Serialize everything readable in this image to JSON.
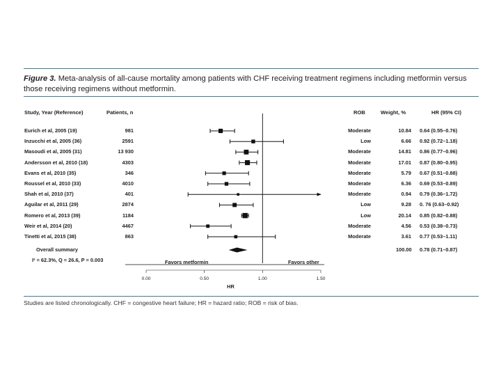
{
  "caption": {
    "label": "Figure 3.",
    "text": "Meta-analysis of all-cause mortality among patients with CHF receiving treatment regimens including metformin versus those receiving regimens without metformin."
  },
  "headers": {
    "study": "Study, Year (Reference)",
    "patients": "Patients, n",
    "rob": "ROB",
    "weight": "Weight, %",
    "hr": "HR (95% CI)"
  },
  "summary": {
    "label": "Overall summary",
    "stats": "I² = 62.3%, Q = 26.6, P = 0.003",
    "weight": "100.00",
    "hr_text": "0.78 (0.71–0.87)"
  },
  "favors": {
    "left": "Favors metformin",
    "right": "Favors other"
  },
  "footnote": "Studies are listed chronologically. CHF = congestive heart failure; HR = hazard ratio; ROB = risk of bias.",
  "chart_data": {
    "type": "forest",
    "xlabel": "HR",
    "xlim": [
      0.0,
      1.5
    ],
    "ticks": [
      "0.00",
      "0.50",
      "1.00",
      "1.50"
    ],
    "tick_values": [
      0,
      0.5,
      1.0,
      1.5
    ],
    "reference_line": 1.0,
    "studies": [
      {
        "study": "Eurich et al, 2005 (19)",
        "patients": "981",
        "rob": "Moderate",
        "weight": "10.84",
        "hr_text": "0.64 (0.55–0.76)",
        "hr": 0.64,
        "lo": 0.55,
        "hi": 0.76,
        "w": 10.84
      },
      {
        "study": "Inzucchi et al, 2005 (36)",
        "patients": "2591",
        "rob": "Low",
        "weight": "6.66",
        "hr_text": "0.92 (0.72–1.18)",
        "hr": 0.92,
        "lo": 0.72,
        "hi": 1.18,
        "w": 6.66
      },
      {
        "study": "Masoudi et al, 2005 (31)",
        "patients": "13 930",
        "rob": "Moderate",
        "weight": "14.81",
        "hr_text": "0.86 (0.77–0.96)",
        "hr": 0.86,
        "lo": 0.77,
        "hi": 0.96,
        "w": 14.81
      },
      {
        "study": "Andersson et al, 2010 (18)",
        "patients": "4303",
        "rob": "Moderate",
        "weight": "17.01",
        "hr_text": "0.87 (0.80–0.95)",
        "hr": 0.87,
        "lo": 0.8,
        "hi": 0.95,
        "w": 17.01
      },
      {
        "study": "Evans et al, 2010 (35)",
        "patients": "346",
        "rob": "Moderate",
        "weight": "5.79",
        "hr_text": "0.67 (0.51–0.88)",
        "hr": 0.67,
        "lo": 0.51,
        "hi": 0.88,
        "w": 5.79
      },
      {
        "study": "Roussel et al, 2010 (33)",
        "patients": "4010",
        "rob": "Moderate",
        "weight": "6.36",
        "hr_text": "0.69 (0.53–0.89)",
        "hr": 0.69,
        "lo": 0.53,
        "hi": 0.89,
        "w": 6.36
      },
      {
        "study": "Shah et al, 2010 (37)",
        "patients": "401",
        "rob": "Moderate",
        "weight": "0.94",
        "hr_text": "0.79 (0.36–1.72)",
        "hr": 0.79,
        "lo": 0.36,
        "hi": 1.72,
        "w": 0.94
      },
      {
        "study": "Aguilar et al, 2011 (29)",
        "patients": "2874",
        "rob": "Low",
        "weight": "9.28",
        "hr_text": "0. 76 (0.63–0.92)",
        "hr": 0.76,
        "lo": 0.63,
        "hi": 0.92,
        "w": 9.28
      },
      {
        "study": "Romero et al, 2013 (39)",
        "patients": "1184",
        "rob": "Low",
        "weight": "20.14",
        "hr_text": "0.85 (0.82–0.88)",
        "hr": 0.85,
        "lo": 0.82,
        "hi": 0.88,
        "w": 20.14
      },
      {
        "study": "Weir et al, 2014 (20)",
        "patients": "4467",
        "rob": "Moderate",
        "weight": "4.56",
        "hr_text": "0.53 (0.38–0.73)",
        "hr": 0.53,
        "lo": 0.38,
        "hi": 0.73,
        "w": 4.56
      },
      {
        "study": "Tinetti et al, 2015 (38)",
        "patients": "863",
        "rob": "Moderate",
        "weight": "3.61",
        "hr_text": "0.77 (0.53–1.11)",
        "hr": 0.77,
        "lo": 0.53,
        "hi": 1.11,
        "w": 3.61
      }
    ],
    "overall": {
      "hr": 0.78,
      "lo": 0.71,
      "hi": 0.87
    }
  }
}
